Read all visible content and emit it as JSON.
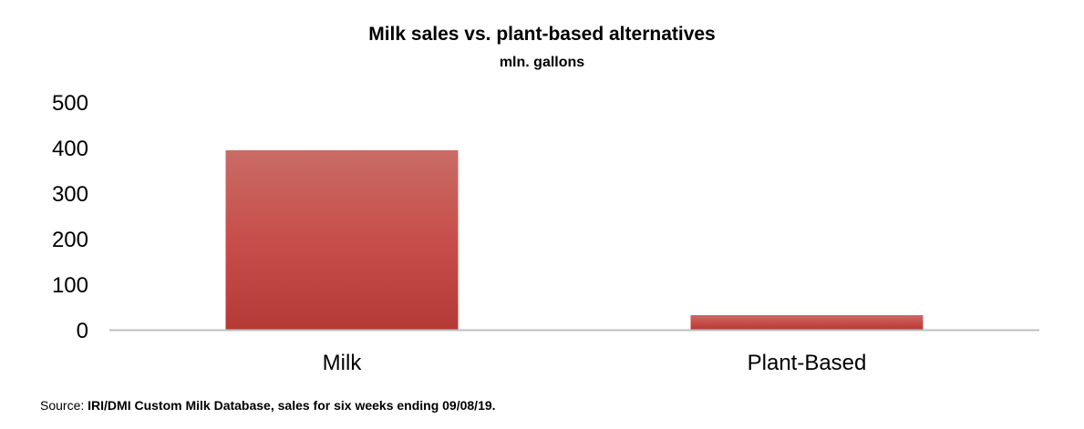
{
  "chart_data": {
    "type": "bar",
    "title": "Milk sales vs. plant-based alternatives",
    "subtitle": "mln. gallons",
    "categories": [
      "Milk",
      "Plant-Based"
    ],
    "values": [
      394,
      32
    ],
    "ylim": [
      0,
      500
    ],
    "yticks": [
      "0",
      "100",
      "200",
      "300",
      "400",
      "500"
    ],
    "xlabel": "",
    "ylabel": "",
    "grid": false,
    "bar_color_top": "#c96c66",
    "bar_color_bottom": "#b43a36"
  },
  "source": {
    "label": "Source: ",
    "text": "IRI/DMI Custom Milk Database, sales for six weeks ending 09/08/19."
  }
}
